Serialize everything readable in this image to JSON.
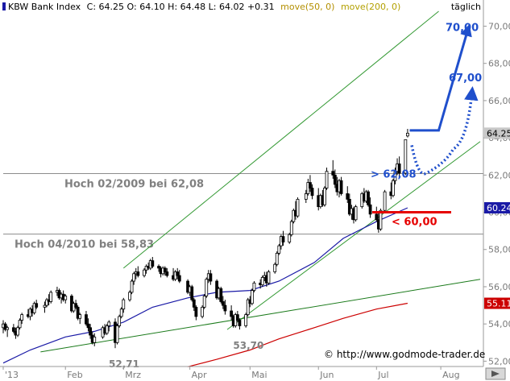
{
  "header": {
    "name": "KBW Bank Index",
    "quote": "C: 64.25 O: 64.10 H: 64.48 L: 64.02 +0.31",
    "ma50_label": "move(50, 0)",
    "ma200_label": "move(200, 0)",
    "period": "täglich"
  },
  "credit": "© http://www.godmode-trader.de",
  "colors": {
    "up": "#ffffff",
    "down": "#000000",
    "ma50": "#1a1aa6",
    "ma200": "#cc0000",
    "channel": "#339933",
    "support": "#1a7a1a",
    "target": "#1f4fcc",
    "stop": "#e60000",
    "grey_line": "#8c8c8c",
    "ma50_legend": "#b38f00",
    "ma200_legend": "#b3a000"
  },
  "chart_data": {
    "type": "candlestick",
    "ylim": [
      51.8,
      70.8
    ],
    "y_ticks": [
      "52,00",
      "54,00",
      "56,00",
      "58,00",
      "60,00",
      "62,00",
      "64,00",
      "66,00",
      "68,00",
      "70,00"
    ],
    "y_tick_values": [
      52,
      54,
      56,
      58,
      60,
      62,
      64,
      66,
      68,
      70
    ],
    "x_ticks": [
      "'13",
      "Feb",
      "Mrz",
      "Apr",
      "Mai",
      "Jun",
      "Jul",
      "Aug"
    ],
    "x_tick_dates": [
      "2013-01-02",
      "2013-02-01",
      "2013-03-01",
      "2013-04-02",
      "2013-05-01",
      "2013-06-03",
      "2013-07-01",
      "2013-08-01"
    ],
    "x_start": "2013-01-02",
    "x_end": "2013-08-20",
    "price_labels": {
      "current": "64.25",
      "current_value": 64.25,
      "ma50": "60.24",
      "ma50_value": 60.24,
      "ma200": "55.11",
      "ma200_value": 55.11
    },
    "candles": [
      [
        "2013-01-02",
        53.8,
        54.2,
        53.5,
        54.0
      ],
      [
        "2013-01-03",
        54.0,
        54.1,
        53.6,
        53.7
      ],
      [
        "2013-01-04",
        53.7,
        53.9,
        53.3,
        53.8
      ],
      [
        "2013-01-07",
        53.8,
        54.0,
        53.5,
        53.6
      ],
      [
        "2013-01-08",
        53.6,
        53.8,
        53.2,
        53.4
      ],
      [
        "2013-01-09",
        53.4,
        53.9,
        53.3,
        53.8
      ],
      [
        "2013-01-10",
        53.8,
        54.3,
        53.7,
        54.2
      ],
      [
        "2013-01-11",
        54.2,
        54.6,
        54.0,
        54.5
      ],
      [
        "2013-01-14",
        54.5,
        54.8,
        54.3,
        54.4
      ],
      [
        "2013-01-15",
        54.4,
        54.9,
        54.2,
        54.8
      ],
      [
        "2013-01-16",
        54.8,
        55.0,
        54.4,
        54.6
      ],
      [
        "2013-01-17",
        54.6,
        55.2,
        54.5,
        55.1
      ],
      [
        "2013-01-18",
        55.1,
        55.3,
        54.8,
        54.9
      ],
      [
        "2013-01-22",
        54.9,
        55.2,
        54.6,
        55.0
      ],
      [
        "2013-01-23",
        55.0,
        55.4,
        54.9,
        55.3
      ],
      [
        "2013-01-24",
        55.3,
        55.6,
        55.0,
        55.2
      ],
      [
        "2013-01-25",
        55.2,
        55.8,
        55.1,
        55.7
      ],
      [
        "2013-01-28",
        55.7,
        56.0,
        55.5,
        55.8
      ],
      [
        "2013-01-29",
        55.8,
        55.9,
        55.3,
        55.4
      ],
      [
        "2013-01-30",
        55.4,
        55.7,
        55.1,
        55.6
      ],
      [
        "2013-01-31",
        55.6,
        55.8,
        55.2,
        55.3
      ],
      [
        "2013-02-01",
        55.3,
        55.6,
        55.1,
        55.5
      ],
      [
        "2013-02-04",
        55.5,
        55.6,
        54.6,
        54.7
      ],
      [
        "2013-02-05",
        54.7,
        55.2,
        54.6,
        55.1
      ],
      [
        "2013-02-06",
        55.1,
        55.3,
        54.8,
        54.9
      ],
      [
        "2013-02-07",
        54.9,
        55.0,
        54.2,
        54.3
      ],
      [
        "2013-02-08",
        54.3,
        54.6,
        54.0,
        54.5
      ],
      [
        "2013-02-11",
        54.5,
        54.7,
        53.9,
        54.0
      ],
      [
        "2013-02-12",
        54.0,
        54.3,
        53.6,
        53.8
      ],
      [
        "2013-02-13",
        53.8,
        54.0,
        53.2,
        53.4
      ],
      [
        "2013-02-14",
        53.4,
        53.6,
        52.9,
        53.0
      ],
      [
        "2013-02-15",
        53.0,
        53.5,
        52.8,
        53.3
      ],
      [
        "2013-02-19",
        53.3,
        53.9,
        53.2,
        53.8
      ],
      [
        "2013-02-20",
        53.8,
        54.0,
        53.4,
        53.5
      ],
      [
        "2013-02-21",
        53.5,
        54.0,
        53.4,
        53.9
      ],
      [
        "2013-02-22",
        53.9,
        54.2,
        53.6,
        54.1
      ],
      [
        "2013-02-25",
        54.1,
        54.3,
        52.7,
        53.0
      ],
      [
        "2013-02-26",
        53.0,
        54.0,
        52.9,
        53.9
      ],
      [
        "2013-02-27",
        53.9,
        54.5,
        53.8,
        54.4
      ],
      [
        "2013-02-28",
        54.4,
        54.9,
        54.3,
        54.8
      ],
      [
        "2013-03-01",
        54.8,
        55.4,
        54.6,
        55.3
      ],
      [
        "2013-03-04",
        55.3,
        55.8,
        55.2,
        55.7
      ],
      [
        "2013-03-05",
        55.7,
        56.4,
        55.6,
        56.3
      ],
      [
        "2013-03-06",
        56.3,
        56.8,
        56.1,
        56.7
      ],
      [
        "2013-03-07",
        56.7,
        57.0,
        56.4,
        56.8
      ],
      [
        "2013-03-08",
        56.8,
        57.1,
        56.5,
        56.6
      ],
      [
        "2013-03-11",
        56.6,
        57.0,
        56.5,
        56.9
      ],
      [
        "2013-03-12",
        56.9,
        57.2,
        56.7,
        57.1
      ],
      [
        "2013-03-13",
        57.1,
        57.3,
        56.9,
        57.0
      ],
      [
        "2013-03-14",
        57.0,
        57.5,
        56.9,
        57.4
      ],
      [
        "2013-03-15",
        57.4,
        57.6,
        57.0,
        57.1
      ],
      [
        "2013-03-18",
        57.1,
        57.2,
        56.8,
        57.0
      ],
      [
        "2013-03-19",
        57.0,
        57.1,
        56.5,
        56.7
      ],
      [
        "2013-03-20",
        56.7,
        57.1,
        56.6,
        57.0
      ],
      [
        "2013-03-21",
        57.0,
        57.1,
        56.6,
        56.8
      ],
      [
        "2013-03-22",
        56.8,
        57.0,
        56.5,
        56.6
      ],
      [
        "2013-03-25",
        56.6,
        57.0,
        56.3,
        56.4
      ],
      [
        "2013-03-26",
        56.4,
        56.9,
        56.3,
        56.8
      ],
      [
        "2013-03-27",
        56.8,
        57.0,
        56.4,
        56.6
      ],
      [
        "2013-03-28",
        56.6,
        56.9,
        56.2,
        56.3
      ],
      [
        "2013-04-01",
        56.3,
        56.4,
        55.6,
        55.7
      ],
      [
        "2013-04-02",
        55.7,
        56.1,
        55.5,
        56.0
      ],
      [
        "2013-04-03",
        56.0,
        56.1,
        55.2,
        55.3
      ],
      [
        "2013-04-04",
        55.3,
        55.4,
        54.7,
        54.9
      ],
      [
        "2013-04-05",
        54.9,
        55.0,
        54.2,
        54.4
      ],
      [
        "2013-04-08",
        54.4,
        55.0,
        54.3,
        54.9
      ],
      [
        "2013-04-09",
        54.9,
        55.6,
        54.8,
        55.5
      ],
      [
        "2013-04-10",
        55.5,
        56.5,
        55.4,
        56.4
      ],
      [
        "2013-04-11",
        56.4,
        56.9,
        56.2,
        56.7
      ],
      [
        "2013-04-12",
        56.7,
        56.9,
        56.1,
        56.3
      ],
      [
        "2013-04-15",
        56.3,
        56.4,
        55.3,
        55.4
      ],
      [
        "2013-04-16",
        55.4,
        56.0,
        55.3,
        55.9
      ],
      [
        "2013-04-17",
        55.9,
        56.0,
        55.1,
        55.2
      ],
      [
        "2013-04-18",
        55.2,
        55.5,
        54.8,
        55.0
      ],
      [
        "2013-04-19",
        55.0,
        55.3,
        54.5,
        54.7
      ],
      [
        "2013-04-22",
        54.7,
        55.0,
        54.2,
        54.4
      ],
      [
        "2013-04-23",
        54.4,
        54.5,
        53.8,
        53.9
      ],
      [
        "2013-04-24",
        53.9,
        54.6,
        53.8,
        54.5
      ],
      [
        "2013-04-25",
        54.5,
        54.7,
        54.1,
        54.2
      ],
      [
        "2013-04-26",
        54.2,
        54.3,
        53.7,
        53.9
      ],
      [
        "2013-04-29",
        53.9,
        54.6,
        53.8,
        54.5
      ],
      [
        "2013-04-30",
        54.5,
        55.4,
        54.4,
        55.3
      ],
      [
        "2013-05-01",
        55.3,
        55.5,
        54.9,
        55.1
      ],
      [
        "2013-05-02",
        55.1,
        55.9,
        55.0,
        55.8
      ],
      [
        "2013-05-03",
        55.8,
        56.3,
        55.7,
        56.2
      ],
      [
        "2013-05-06",
        56.2,
        56.4,
        55.9,
        56.1
      ],
      [
        "2013-05-07",
        56.1,
        56.6,
        56.0,
        56.5
      ],
      [
        "2013-05-08",
        56.5,
        56.8,
        56.3,
        56.6
      ],
      [
        "2013-05-09",
        56.6,
        56.8,
        56.0,
        56.2
      ],
      [
        "2013-05-10",
        56.2,
        56.9,
        56.1,
        56.8
      ],
      [
        "2013-05-13",
        56.8,
        57.3,
        56.7,
        57.2
      ],
      [
        "2013-05-14",
        57.2,
        57.9,
        57.1,
        57.8
      ],
      [
        "2013-05-15",
        57.8,
        58.3,
        57.7,
        58.2
      ],
      [
        "2013-05-16",
        58.2,
        58.8,
        58.0,
        58.7
      ],
      [
        "2013-05-17",
        58.7,
        59.0,
        58.2,
        58.4
      ],
      [
        "2013-05-20",
        58.4,
        58.9,
        58.3,
        58.8
      ],
      [
        "2013-05-21",
        58.8,
        59.6,
        58.7,
        59.5
      ],
      [
        "2013-05-22",
        59.5,
        60.2,
        59.4,
        60.1
      ],
      [
        "2013-05-23",
        60.1,
        60.6,
        59.6,
        59.8
      ],
      [
        "2013-05-24",
        59.8,
        60.8,
        59.7,
        60.7
      ],
      [
        "2013-05-28",
        60.7,
        61.2,
        60.5,
        61.0
      ],
      [
        "2013-05-29",
        61.0,
        61.8,
        60.9,
        61.6
      ],
      [
        "2013-05-30",
        61.6,
        62.0,
        61.1,
        61.3
      ],
      [
        "2013-05-31",
        61.3,
        61.5,
        60.7,
        60.9
      ],
      [
        "2013-06-03",
        60.9,
        61.3,
        60.1,
        60.3
      ],
      [
        "2013-06-04",
        60.3,
        61.0,
        60.2,
        60.9
      ],
      [
        "2013-06-05",
        60.9,
        61.2,
        60.3,
        60.4
      ],
      [
        "2013-06-06",
        60.4,
        61.4,
        60.3,
        61.3
      ],
      [
        "2013-06-07",
        61.3,
        62.4,
        61.2,
        62.2
      ],
      [
        "2013-06-10",
        62.2,
        62.8,
        61.8,
        62.0
      ],
      [
        "2013-06-11",
        62.0,
        62.3,
        61.3,
        61.5
      ],
      [
        "2013-06-12",
        61.5,
        61.9,
        60.9,
        61.1
      ],
      [
        "2013-06-13",
        61.1,
        61.8,
        60.8,
        61.7
      ],
      [
        "2013-06-14",
        61.7,
        61.9,
        60.9,
        61.0
      ],
      [
        "2013-06-17",
        61.0,
        61.4,
        60.5,
        60.7
      ],
      [
        "2013-06-18",
        60.7,
        61.0,
        59.8,
        59.9
      ],
      [
        "2013-06-19",
        59.9,
        60.4,
        59.6,
        60.2
      ],
      [
        "2013-06-20",
        60.2,
        60.3,
        59.4,
        59.6
      ],
      [
        "2013-06-21",
        59.6,
        60.4,
        59.5,
        60.3
      ],
      [
        "2013-06-24",
        60.3,
        61.1,
        60.2,
        61.0
      ],
      [
        "2013-06-25",
        61.0,
        61.3,
        60.5,
        60.6
      ],
      [
        "2013-06-26",
        60.6,
        61.2,
        60.5,
        61.1
      ],
      [
        "2013-06-27",
        61.1,
        61.2,
        60.3,
        60.4
      ],
      [
        "2013-06-28",
        60.4,
        60.8,
        59.7,
        59.9
      ],
      [
        "2013-07-01",
        59.9,
        60.3,
        59.5,
        59.6
      ],
      [
        "2013-07-02",
        59.6,
        60.0,
        58.9,
        59.1
      ],
      [
        "2013-07-03",
        59.1,
        60.2,
        59.0,
        60.1
      ],
      [
        "2013-07-05",
        60.1,
        61.2,
        60.0,
        61.1
      ],
      [
        "2013-07-08",
        61.1,
        61.6,
        60.7,
        60.9
      ],
      [
        "2013-07-09",
        60.9,
        61.8,
        60.8,
        61.7
      ],
      [
        "2013-07-10",
        61.7,
        62.4,
        61.5,
        62.2
      ],
      [
        "2013-07-11",
        62.2,
        62.9,
        62.0,
        62.6
      ],
      [
        "2013-07-12",
        62.6,
        63.0,
        61.9,
        62.1
      ],
      [
        "2013-07-15",
        62.1,
        63.9,
        62.0,
        63.9
      ],
      [
        "2013-07-16",
        64.1,
        64.48,
        64.02,
        64.25
      ]
    ],
    "ma50": [
      [
        "2013-01-02",
        51.9
      ],
      [
        "2013-01-15",
        52.6
      ],
      [
        "2013-02-01",
        53.3
      ],
      [
        "2013-02-15",
        53.6
      ],
      [
        "2013-03-01",
        54.1
      ],
      [
        "2013-03-15",
        54.9
      ],
      [
        "2013-04-01",
        55.4
      ],
      [
        "2013-04-15",
        55.7
      ],
      [
        "2013-05-01",
        55.8
      ],
      [
        "2013-05-15",
        56.3
      ],
      [
        "2013-06-01",
        57.3
      ],
      [
        "2013-06-15",
        58.6
      ],
      [
        "2013-07-01",
        59.5
      ],
      [
        "2013-07-16",
        60.24
      ]
    ],
    "ma200": [
      [
        "2013-04-01",
        51.7
      ],
      [
        "2013-04-15",
        52.1
      ],
      [
        "2013-05-01",
        52.6
      ],
      [
        "2013-05-15",
        53.2
      ],
      [
        "2013-06-01",
        53.8
      ],
      [
        "2013-06-15",
        54.3
      ],
      [
        "2013-07-01",
        54.8
      ],
      [
        "2013-07-16",
        55.11
      ]
    ],
    "trendlines": [
      {
        "name": "channel-upper",
        "from": [
          "2013-03-01",
          57.0
        ],
        "to": [
          "2013-07-31",
          70.8
        ]
      },
      {
        "name": "channel-lower",
        "from": [
          "2013-04-20",
          53.7
        ],
        "to": [
          "2013-08-20",
          63.8
        ]
      },
      {
        "name": "support",
        "from": [
          "2013-01-20",
          52.5
        ],
        "to": [
          "2013-08-20",
          56.4
        ]
      }
    ],
    "levels": [
      {
        "name": "hoch-2009",
        "label": "Hoch 02/2009 bei 62,08",
        "value": 62.08,
        "from": "2013-01-02",
        "to": "2013-08-20"
      },
      {
        "name": "hoch-2010",
        "label": "Hoch 04/2010 bei 58,83",
        "value": 58.83,
        "from": "2013-01-02",
        "to": "2013-08-20"
      }
    ],
    "annotations": {
      "lows": [
        {
          "label": "52,71",
          "date": "2013-02-25",
          "value": 52.71
        },
        {
          "label": "53,70",
          "date": "2013-04-26",
          "value": 53.7
        }
      ],
      "targets": [
        {
          "label": "70,00",
          "value": 70.0
        },
        {
          "label": "67,00",
          "value": 67.0
        },
        {
          "label": "> 62,08",
          "value": 62.08
        }
      ],
      "stop": {
        "label": "< 60,00",
        "value": 60.0
      },
      "scenario_up": {
        "path": [
          [
            "2013-07-17",
            64.4
          ],
          [
            "2013-07-31",
            64.4
          ],
          [
            "2013-08-14",
            69.8
          ]
        ]
      },
      "scenario_pullback": {
        "path": [
          [
            "2013-07-18",
            63.6
          ],
          [
            "2013-07-25",
            62.1
          ],
          [
            "2013-08-07",
            63.4
          ],
          [
            "2013-08-16",
            66.4
          ]
        ]
      }
    }
  }
}
